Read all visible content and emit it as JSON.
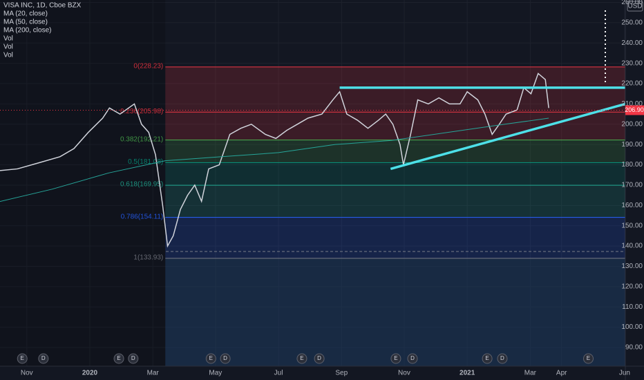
{
  "chart_data": {
    "type": "line",
    "currency": "USD",
    "last_price": {
      "value": 206.9,
      "label": "206.90"
    },
    "indicators": [
      "MA (20, close)",
      "MA (50, close)",
      "Vol",
      "Vol",
      "Vol"
    ],
    "xlim": [
      2019.762,
      2021.419
    ],
    "ylim": [
      80.8,
      261.2
    ],
    "xticks": [
      {
        "value": 2019.833,
        "label": "Nov"
      },
      {
        "value": 2020,
        "label": "2020"
      },
      {
        "value": 2020.167,
        "label": "Mar"
      },
      {
        "value": 2020.333,
        "label": "May"
      },
      {
        "value": 2020.5,
        "label": "Jul"
      },
      {
        "value": 2020.667,
        "label": "Sep"
      },
      {
        "value": 2020.833,
        "label": "Nov"
      },
      {
        "value": 2021,
        "label": "2021"
      },
      {
        "value": 2021.167,
        "label": "Mar"
      },
      {
        "value": 2021.25,
        "label": "Apr"
      },
      {
        "value": 2021.417,
        "label": "Jun"
      }
    ],
    "yticks": [
      {
        "value": 90,
        "label": "90.00"
      },
      {
        "value": 100,
        "label": "100.00"
      },
      {
        "value": 110,
        "label": "110.00"
      },
      {
        "value": 120,
        "label": "120.00"
      },
      {
        "value": 130,
        "label": "130.00"
      },
      {
        "value": 140,
        "label": "140.00"
      },
      {
        "value": 150,
        "label": "150.00"
      },
      {
        "value": 160,
        "label": "160.00"
      },
      {
        "value": 170,
        "label": "170.00"
      },
      {
        "value": 180,
        "label": "180.00"
      },
      {
        "value": 190,
        "label": "190.00"
      },
      {
        "value": 200,
        "label": "200.00"
      },
      {
        "value": 210,
        "label": "210.00"
      },
      {
        "value": 220,
        "label": "220.00"
      },
      {
        "value": 230,
        "label": "230.00"
      },
      {
        "value": 240,
        "label": "240.00"
      },
      {
        "value": 250,
        "label": "250.00"
      },
      {
        "value": 260,
        "label": "260.00"
      }
    ],
    "series": [
      {
        "name": "VISA INC, 1D, Cboe BZX",
        "color": "#d1d4dc",
        "x": [
          2019.752,
          2019.808,
          2019.865,
          2019.921,
          2019.958,
          2019.996,
          2020.034,
          2020.052,
          2020.08,
          2020.118,
          2020.137,
          2020.156,
          2020.174,
          2020.193,
          2020.206,
          2020.221,
          2020.24,
          2020.259,
          2020.278,
          2020.296,
          2020.315,
          2020.343,
          2020.371,
          2020.4,
          2020.428,
          2020.465,
          2020.493,
          2020.522,
          2020.55,
          2020.578,
          2020.615,
          2020.644,
          2020.662,
          2020.681,
          2020.709,
          2020.737,
          2020.765,
          2020.784,
          2020.803,
          2020.822,
          2020.831,
          2020.85,
          2020.869,
          2020.897,
          2020.925,
          2020.953,
          2020.981,
          2021.0,
          2021.028,
          2021.047,
          2021.066,
          2021.085,
          2021.103,
          2021.132,
          2021.15,
          2021.169,
          2021.188,
          2021.207,
          2021.216
        ],
        "values": [
          177,
          178,
          181,
          184,
          188,
          196,
          203,
          208,
          205,
          210,
          200,
          196,
          185,
          160,
          140,
          145,
          158,
          165,
          170,
          162,
          178,
          180,
          195,
          198,
          200,
          195,
          193,
          197,
          200,
          203,
          205,
          212,
          216,
          205,
          202,
          198,
          202,
          205,
          200,
          190,
          180,
          195,
          212,
          210,
          213,
          210,
          210,
          216,
          212,
          205,
          195,
          200,
          205,
          207,
          218,
          215,
          225,
          222,
          208
        ]
      },
      {
        "name": "MA (200, close)",
        "color": "#26a69a",
        "x": [
          2019.752,
          2019.9,
          2020.05,
          2020.2,
          2020.35,
          2020.5,
          2020.65,
          2020.8,
          2020.95,
          2021.1,
          2021.216
        ],
        "values": [
          161.5,
          168,
          176,
          182,
          184,
          186,
          190,
          192,
          196,
          200,
          203
        ]
      }
    ],
    "fib_start": 2020.2,
    "fib_levels": [
      {
        "value": 228.23,
        "label": "0(228.23)",
        "color": "#f23645"
      },
      {
        "value": 205.98,
        "label": "0.236(205.98)",
        "color": "#f23645"
      },
      {
        "value": 192.21,
        "label": "0.382(192.21)",
        "color": "#4caf50"
      },
      {
        "value": 181.08,
        "label": "0.5(181.08)",
        "color": "#089981"
      },
      {
        "value": 169.95,
        "label": "0.618(169.95)",
        "color": "#22ab94"
      },
      {
        "value": 154.11,
        "label": "0.786(154.11)",
        "color": "#2962ff"
      },
      {
        "value": 133.93,
        "label": "1(133.93)",
        "color": "#787b86"
      }
    ],
    "trend_lines": [
      {
        "x": [
          2020.662,
          2021.419
        ],
        "y": [
          218,
          218
        ]
      },
      {
        "x": [
          2020.797,
          2021.419
        ],
        "y": [
          178,
          210
        ]
      }
    ],
    "events": [
      {
        "label": "E",
        "x": 2019.821
      },
      {
        "label": "D",
        "x": 2019.877
      },
      {
        "label": "E",
        "x": 2020.077
      },
      {
        "label": "D",
        "x": 2020.115
      },
      {
        "label": "E",
        "x": 2020.321
      },
      {
        "label": "D",
        "x": 2020.359
      },
      {
        "label": "E",
        "x": 2020.562
      },
      {
        "label": "D",
        "x": 2020.608
      },
      {
        "label": "E",
        "x": 2020.811
      },
      {
        "label": "D",
        "x": 2020.855
      },
      {
        "label": "E",
        "x": 2021.053
      },
      {
        "label": "D",
        "x": 2021.093
      },
      {
        "label": "E",
        "x": 2021.321
      }
    ]
  }
}
